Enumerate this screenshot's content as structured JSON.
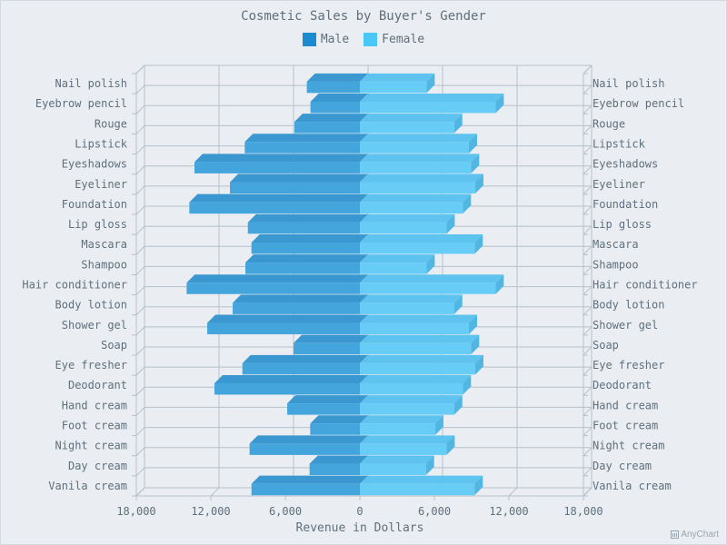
{
  "chart_data": {
    "type": "bar",
    "orientation": "horizontal",
    "style": "3d-tornado",
    "title": "Cosmetic Sales by Buyer's Gender",
    "xlabel": "Revenue in Dollars",
    "ylabel": "",
    "xlim": [
      -18000,
      18000
    ],
    "xticks": [
      "18,000",
      "12,000",
      "6,000",
      "0",
      "6,000",
      "12,000",
      "18,000"
    ],
    "grid": true,
    "legend_position": "top",
    "categories": [
      "Nail polish",
      "Eyebrow pencil",
      "Rouge",
      "Lipstick",
      "Eyeshadows",
      "Eyeliner",
      "Foundation",
      "Lip gloss",
      "Mascara",
      "Shampoo",
      "Hair conditioner",
      "Body lotion",
      "Shower gel",
      "Soap",
      "Eye fresher",
      "Deodorant",
      "Hand cream",
      "Foot cream",
      "Night cream",
      "Day cream",
      "Vanila cream"
    ],
    "series": [
      {
        "name": "Male",
        "color": "#1a8ad1",
        "side_color": "#3a97cf",
        "front_color": "#44a5dc",
        "values": [
          4270,
          3980,
          5270,
          9270,
          13320,
          10460,
          13730,
          9020,
          8730,
          9220,
          13950,
          10240,
          12290,
          5340,
          9460,
          11710,
          5850,
          4000,
          8880,
          4050,
          8730
        ]
      },
      {
        "name": "Female",
        "color": "#49c8f8",
        "side_color": "#5ec3ee",
        "front_color": "#68cdf6",
        "values": [
          5370,
          10930,
          7590,
          8780,
          8950,
          9290,
          8290,
          6980,
          9240,
          5370,
          10930,
          7590,
          8780,
          8950,
          9290,
          8290,
          7590,
          6070,
          6980,
          5320,
          9240
        ]
      }
    ]
  },
  "credit": "AnyChart"
}
